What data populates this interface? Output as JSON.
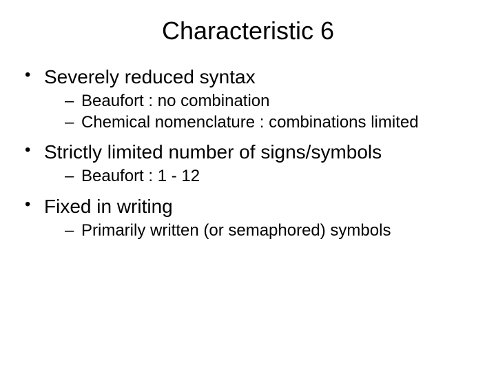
{
  "title": "Characteristic 6",
  "bullets": [
    {
      "text": "Severely reduced syntax",
      "sub": [
        "Beaufort : no combination",
        "Chemical nomenclature : combinations limited"
      ]
    },
    {
      "text": "Strictly limited number of signs/symbols",
      "sub": [
        "Beaufort : 1 - 12"
      ]
    },
    {
      "text": "Fixed in writing",
      "sub": [
        "Primarily written (or semaphored) symbols"
      ]
    }
  ]
}
